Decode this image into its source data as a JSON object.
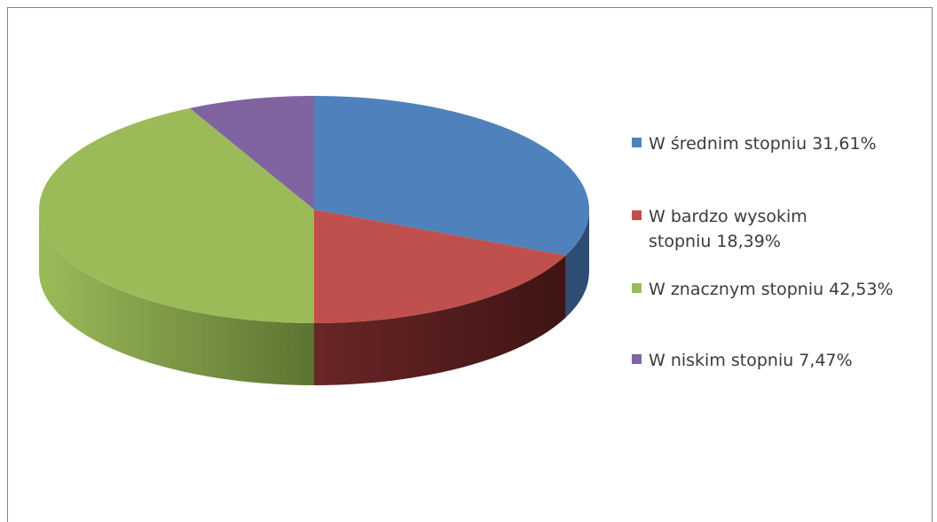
{
  "chart_data": {
    "type": "pie",
    "slices": [
      {
        "label": "W średnim stopniu 31,61%",
        "value": 31.61,
        "color": "#4F81BD",
        "side_dark": "#2E4D74"
      },
      {
        "label": "W bardzo wysokim stopniu 18,39%",
        "value": 18.39,
        "color": "#C0504D",
        "side_dark": "#4E1A1A"
      },
      {
        "label": "W znacznym stopniu 42,53%",
        "value": 42.53,
        "color": "#9BBB59",
        "side_dark": "#5C7432"
      },
      {
        "label": "W niskim stopniu 7,47%",
        "value": 7.47,
        "color": "#8064A2",
        "side_dark": "#4A3764"
      }
    ],
    "legend_position": "right",
    "style": "3d"
  }
}
